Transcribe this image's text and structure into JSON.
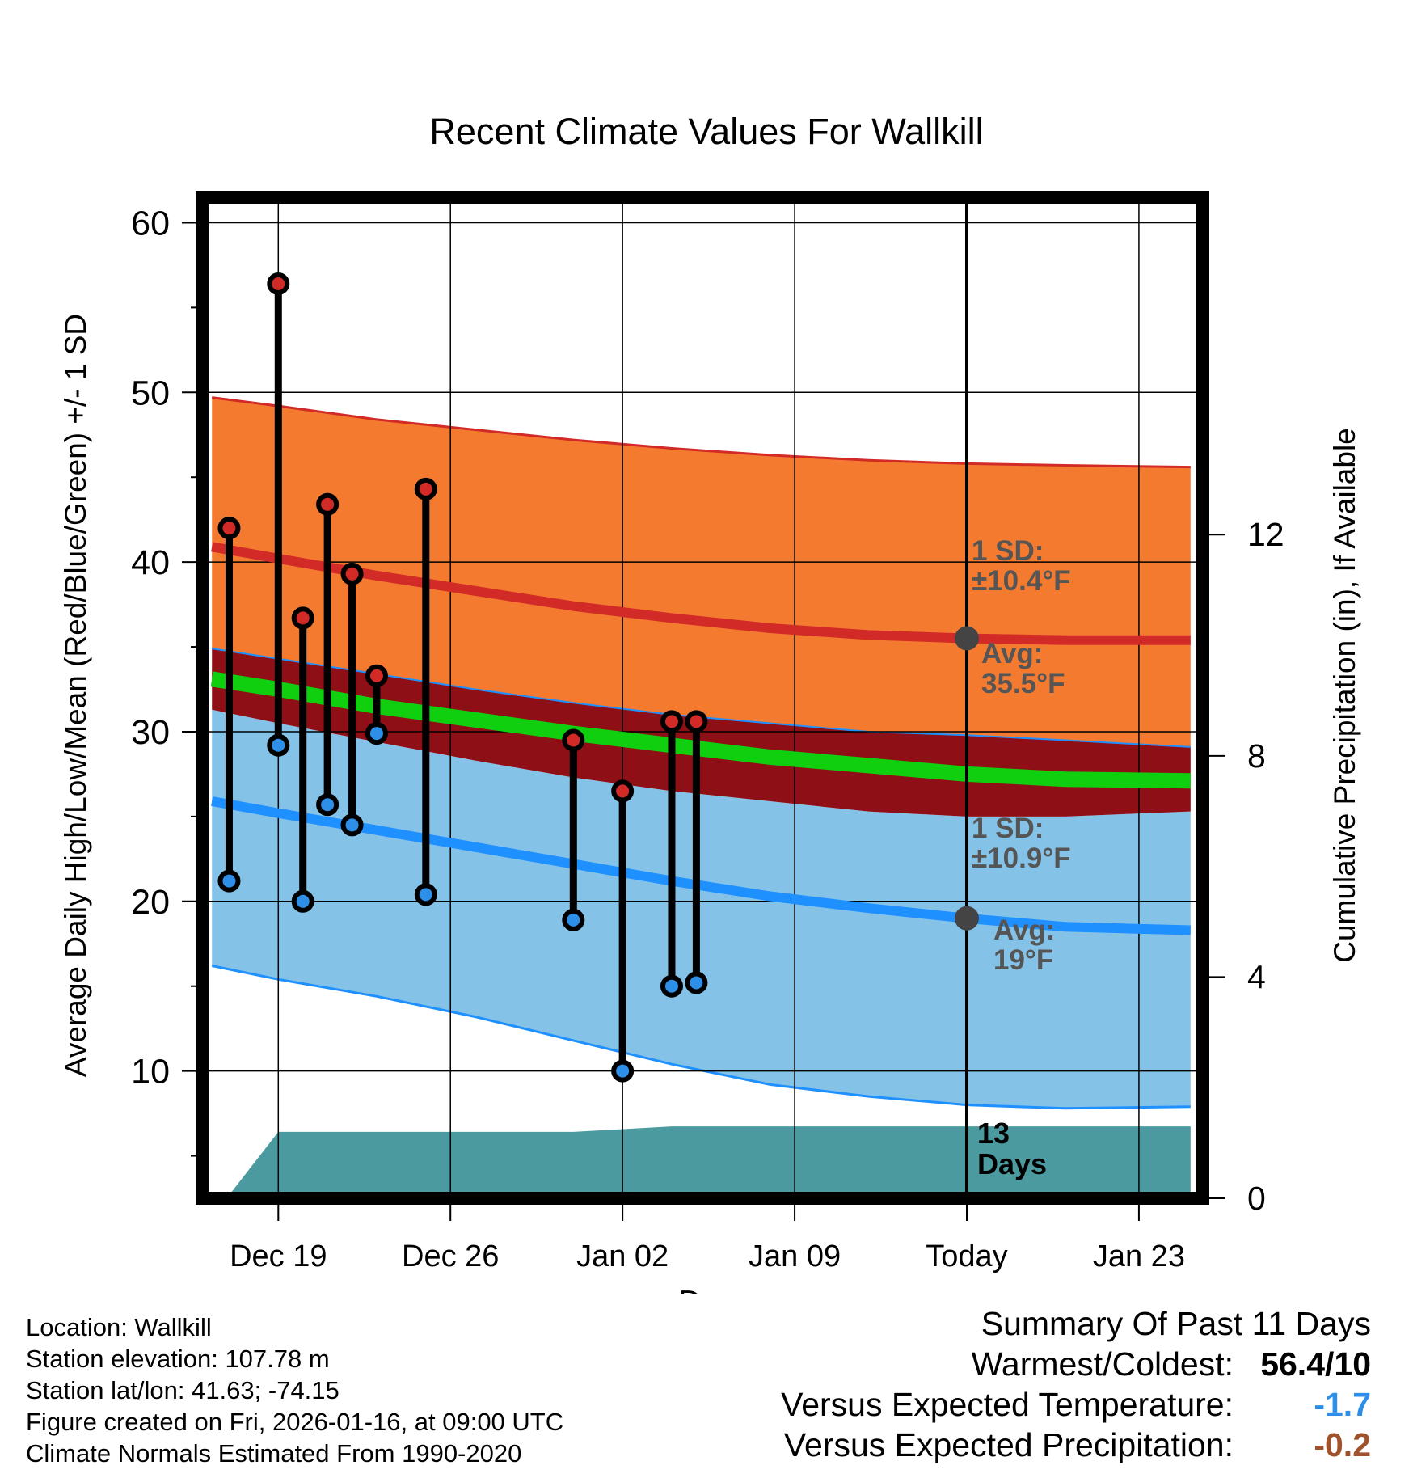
{
  "chart_data": {
    "type": "line",
    "title": "Recent Climate Values For Wallkill",
    "xlabel": "Day",
    "ylabel": "Average Daily High/Low/Mean (Red/Blue/Green) +/- 1 SD",
    "y2label": "Cumulative Precipitation (in), If Available",
    "ylim": [
      2.5,
      61.5
    ],
    "y2lim": [
      0,
      18.1
    ],
    "yticks": [
      10,
      20,
      30,
      40,
      50,
      60
    ],
    "y2ticks": [
      0,
      4,
      8,
      12
    ],
    "xlim": [
      -3.1,
      37.6
    ],
    "x_tick_positions": [
      0,
      7,
      14,
      21,
      28,
      35
    ],
    "x_tick_labels": [
      "Dec 19",
      "Dec 26",
      "Jan 02",
      "Jan 09",
      "Today",
      "Jan 23"
    ],
    "today_x": 28,
    "today_label": "13 Days",
    "normals_x": [
      -2.7,
      0,
      4,
      8,
      12,
      16,
      20,
      24,
      28,
      32,
      37.1
    ],
    "normal_high_upper": [
      49.7,
      49.2,
      48.4,
      47.8,
      47.2,
      46.7,
      46.3,
      46.0,
      45.8,
      45.7,
      45.6
    ],
    "normal_high": [
      40.9,
      40.2,
      39.2,
      38.3,
      37.4,
      36.7,
      36.1,
      35.7,
      35.5,
      35.4,
      35.4
    ],
    "normal_high_lower": [
      34.9,
      34.3,
      33.4,
      32.5,
      31.7,
      31.0,
      30.5,
      30.0,
      29.8,
      29.5,
      29.1
    ],
    "normal_mean_upper": [
      33.6,
      33.0,
      32.0,
      31.2,
      30.4,
      29.7,
      29.0,
      28.5,
      28.0,
      27.7,
      27.6
    ],
    "normal_mean_lower": [
      32.6,
      32.0,
      31.0,
      30.2,
      29.4,
      28.7,
      28.0,
      27.5,
      27.0,
      26.7,
      26.6
    ],
    "normal_low_upper": [
      31.3,
      30.5,
      29.4,
      28.3,
      27.3,
      26.5,
      25.9,
      25.3,
      25.0,
      25.0,
      25.3
    ],
    "normal_low": [
      25.9,
      25.2,
      24.2,
      23.2,
      22.2,
      21.2,
      20.3,
      19.6,
      19.0,
      18.5,
      18.3
    ],
    "normal_low_lower": [
      16.2,
      15.4,
      14.4,
      13.2,
      11.8,
      10.4,
      9.2,
      8.5,
      8.0,
      7.8,
      7.9
    ],
    "observed": [
      {
        "x": -2,
        "high": 42.0,
        "low": 21.2
      },
      {
        "x": 0,
        "high": 56.4,
        "low": 29.2
      },
      {
        "x": 1,
        "high": 36.7,
        "low": 20.0
      },
      {
        "x": 2,
        "high": 43.4,
        "low": 25.7
      },
      {
        "x": 3,
        "high": 39.3,
        "low": 24.5
      },
      {
        "x": 4,
        "high": 33.3,
        "low": 29.9
      },
      {
        "x": 6,
        "high": 44.3,
        "low": 20.4
      },
      {
        "x": 12,
        "high": 29.5,
        "low": 18.9
      },
      {
        "x": 14,
        "high": 26.5,
        "low": 10.0
      },
      {
        "x": 16,
        "high": 30.6,
        "low": 15.0
      },
      {
        "x": 17,
        "high": 30.6,
        "low": 15.2
      }
    ],
    "precip_x": [
      -2.1,
      0,
      12,
      16,
      37.1
    ],
    "precip_cum": [
      0.0,
      1.2,
      1.2,
      1.3,
      1.3
    ],
    "annot_high_sd": [
      "1 SD:",
      "±10.4°F"
    ],
    "annot_high_avg": [
      "Avg:",
      "35.5°F"
    ],
    "annot_low_sd": [
      "1 SD:",
      "±10.9°F"
    ],
    "annot_low_avg": [
      "Avg:",
      "19°F"
    ]
  },
  "footer": {
    "location": "Location: Wallkill",
    "elevation": "Station elevation: 107.78 m",
    "latlon": "Station lat/lon: 41.63; -74.15",
    "created": "Figure created on Fri, 2026-01-16, at 09:00 UTC",
    "normals": "Climate Normals Estimated From 1990-2020"
  },
  "summary": {
    "title": "Summary Of Past 11 Days",
    "warm_cold_label": "Warmest/Coldest:",
    "warm_cold_value": "56.4/10",
    "temp_label": "Versus Expected Temperature:",
    "temp_value": "-1.7",
    "precip_label": "Versus Expected Precipitation:",
    "precip_value": "-0.2",
    "colors": {
      "temp": "#2e8fe8",
      "precip": "#a0522d"
    }
  },
  "colors": {
    "high_band": "#f47a30",
    "high_line": "#d22a27",
    "mean_band": "#8f0f16",
    "mean_line": "#0fcf0f",
    "low_band": "#85c2e8",
    "low_line": "#1e90ff",
    "precip": "#4a9aa0",
    "high_marker": "#d22a27",
    "low_marker": "#2e8fe8",
    "avg_marker": "#444444",
    "annotation": "#555555"
  }
}
